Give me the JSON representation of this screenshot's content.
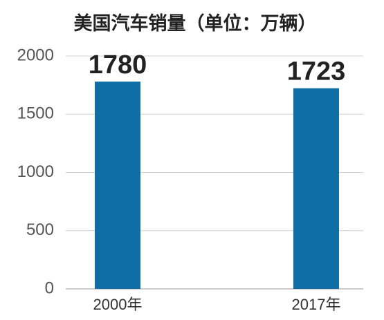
{
  "chart_data": {
    "type": "bar",
    "title": "美国汽车销量（单位：万辆）",
    "categories": [
      "2000年",
      "2017年"
    ],
    "values": [
      1780,
      1723
    ],
    "color": "#0f6ea6",
    "ylim": [
      0,
      2000
    ],
    "yticks": [
      0,
      500,
      1000,
      1500,
      2000
    ],
    "grid": true
  }
}
